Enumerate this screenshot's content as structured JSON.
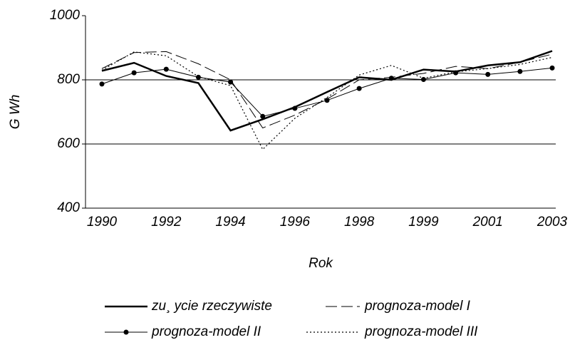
{
  "chart_data": {
    "type": "line",
    "xlabel": "Rok",
    "ylabel": "G Wh",
    "categories": [
      "1990",
      null,
      "1992",
      null,
      "1994",
      null,
      "1996",
      null,
      "1998",
      null,
      "1999",
      null,
      "2001",
      null,
      "2003"
    ],
    "ylim": [
      400,
      1000
    ],
    "yticks": [
      400,
      600,
      800,
      1000
    ],
    "grid": true,
    "series": [
      {
        "name": "zu¸ ycie rzeczywiste",
        "color": "#000000",
        "style": "solid-thick",
        "values": [
          828,
          853,
          812,
          790,
          642,
          677,
          715,
          762,
          808,
          800,
          832,
          826,
          845,
          855,
          890
        ]
      },
      {
        "name": "prognoza-model I",
        "color": "#000000",
        "style": "dashed",
        "values": [
          835,
          885,
          888,
          850,
          800,
          650,
          690,
          740,
          800,
          808,
          820,
          842,
          835,
          855,
          880
        ]
      },
      {
        "name": "prognoza-model II",
        "color": "#000000",
        "style": "solid-marker",
        "values": [
          787,
          822,
          833,
          808,
          793,
          686,
          711,
          736,
          773,
          805,
          801,
          822,
          817,
          826,
          837
        ]
      },
      {
        "name": "prognoza-model III",
        "color": "#000000",
        "style": "dotted",
        "values": [
          830,
          887,
          875,
          810,
          782,
          583,
          680,
          745,
          815,
          845,
          805,
          825,
          835,
          848,
          870
        ]
      }
    ]
  }
}
